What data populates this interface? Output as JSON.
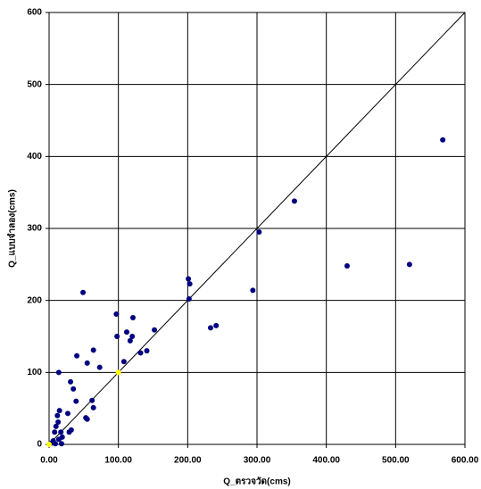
{
  "chart_data": {
    "type": "scatter",
    "x_label": "Q_ตรวจวัด(cms)",
    "y_label": "Q_แบบจำลอง(cms)",
    "xlim": [
      0,
      600
    ],
    "ylim": [
      0,
      600
    ],
    "xticks": [
      {
        "value": 0,
        "label": "0.00"
      },
      {
        "value": 100,
        "label": "100.00"
      },
      {
        "value": 200,
        "label": "200.00"
      },
      {
        "value": 300,
        "label": "300.00"
      },
      {
        "value": 400,
        "label": "400.00"
      },
      {
        "value": 500,
        "label": "500.00"
      },
      {
        "value": 600,
        "label": "600.00"
      }
    ],
    "yticks": [
      0,
      100,
      200,
      300,
      400,
      500,
      600
    ],
    "grid": true,
    "series": [
      {
        "color": "#000080",
        "x": [
          568,
          520,
          430,
          354,
          303,
          294,
          203,
          201,
          202,
          241,
          233,
          152,
          141,
          132,
          121,
          120,
          117,
          112,
          108,
          97,
          98,
          73,
          64,
          55,
          40,
          49,
          39,
          35,
          31,
          64,
          62,
          53,
          55,
          27,
          32,
          29,
          14,
          15,
          12,
          13,
          10,
          8,
          17,
          19,
          14,
          6,
          9,
          4,
          18
        ],
        "y": [
          423,
          250,
          248,
          338,
          295,
          214,
          223,
          230,
          202,
          165,
          162,
          159,
          130,
          127,
          176,
          150,
          144,
          156,
          115,
          181,
          150,
          107,
          131,
          113,
          123,
          211,
          60,
          77,
          87,
          51,
          61,
          37,
          35,
          43,
          20,
          17,
          100,
          47,
          40,
          31,
          25,
          17,
          17,
          10,
          7,
          5,
          1,
          2,
          1
        ]
      },
      {
        "color": "#ffff00",
        "x": [
          0,
          100
        ],
        "y": [
          0,
          100
        ]
      }
    ]
  }
}
